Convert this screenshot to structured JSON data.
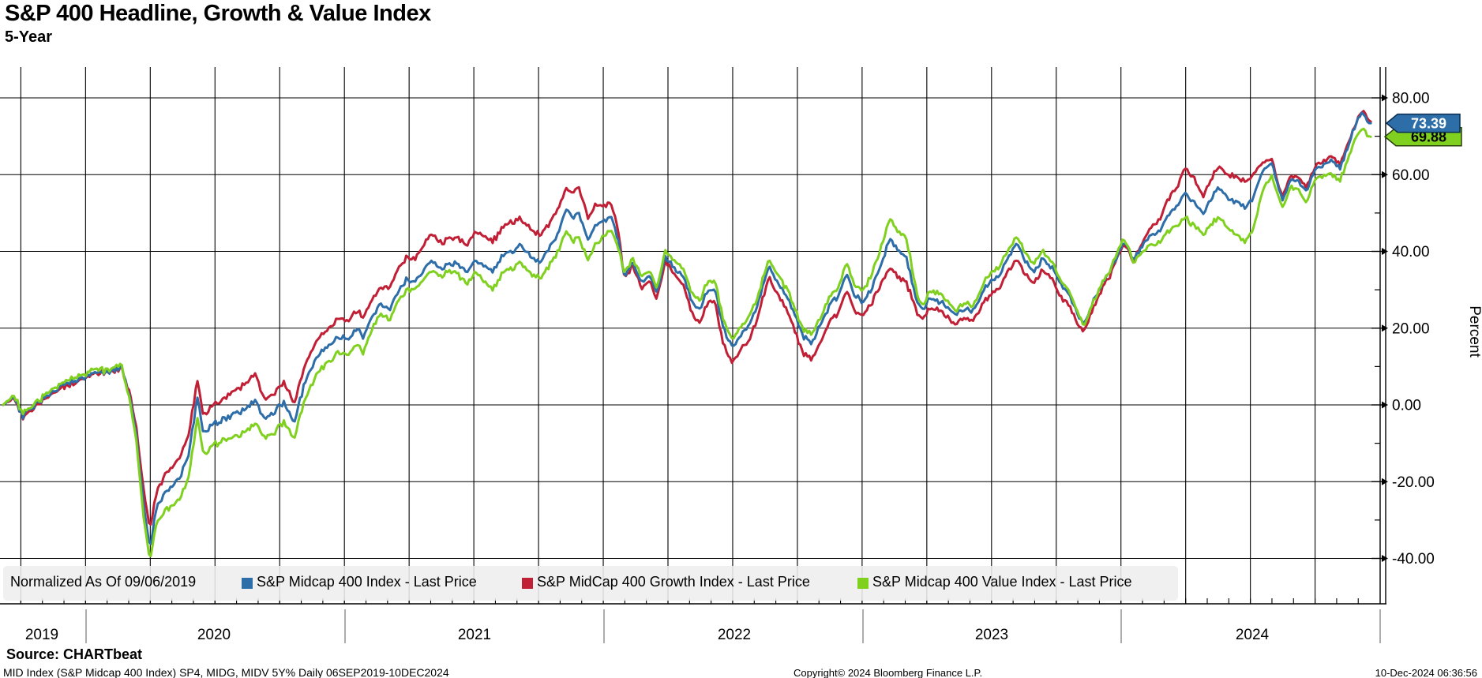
{
  "header": {
    "title": "S&P 400 Headline, Growth & Value Index",
    "subtitle": "5-Year"
  },
  "legend": {
    "normalized_label": "Normalized As Of 09/06/2019",
    "items": [
      {
        "label": "S&P Midcap 400 Index - Last Price",
        "color": "#2d6da8"
      },
      {
        "label": "S&P MidCap 400 Growth Index - Last Price",
        "color": "#c01f35"
      },
      {
        "label": "S&P Midcap 400 Value Index - Last Price",
        "color": "#80d020"
      }
    ]
  },
  "y_axis": {
    "title": "Percent",
    "major_ticks": [
      80,
      60,
      40,
      20,
      0,
      -20,
      -40
    ],
    "major_tick_labels": [
      "80.00",
      "60.00",
      "40.00",
      "20.00",
      "0.00",
      "-20.00",
      "-40.00"
    ],
    "minor_ticks": [
      70,
      50,
      30,
      10,
      -10,
      -30
    ]
  },
  "x_axis": {
    "year_labels": [
      "2019",
      "2020",
      "2021",
      "2022",
      "2023",
      "2024"
    ]
  },
  "price_tags": [
    {
      "label": "73.39",
      "value": 73.39,
      "bg": "#2d6da8",
      "text_color": "#ffffff",
      "border": "#0d2f52"
    },
    {
      "label": "69.88",
      "value": 69.88,
      "bg": "#80d020",
      "text_color": "#000000",
      "border": "#27400b"
    }
  ],
  "footer": {
    "source": "Source: CHARTbeat",
    "meta": "MID Index (S&P Midcap 400 Index) SP4, MIDG, MIDV 5Y%  Daily 06SEP2019-10DEC2024",
    "copyright": "Copyright© 2024 Bloomberg Finance L.P.",
    "timestamp": "10-Dec-2024 06:36:56"
  },
  "chart_data": {
    "type": "line",
    "title": "S&P 400 Headline, Growth & Value Index",
    "subtitle": "5-Year",
    "ylabel": "Percent",
    "ylim": [
      -52,
      88
    ],
    "yticks": [
      80,
      60,
      40,
      20,
      0,
      -20,
      -40
    ],
    "grid": "vertical quarterly lines, horizontal every 20 units",
    "legend_position": "bottom-inside",
    "normalized_as_of": "09/06/2019",
    "period": "06SEP2019-10DEC2024",
    "x_unit": "months since 2019-09-06",
    "x_years": {
      "2020": 3.84,
      "2021": 15.88,
      "2022": 27.92,
      "2023": 39.96,
      "2024": 52.0
    },
    "t": [
      0,
      0.5,
      0.9,
      1.3,
      1.8,
      2.3,
      2.9,
      3.4,
      3.9,
      4.4,
      4.7,
      5.1,
      5.5,
      5.9,
      6.2,
      6.5,
      6.8,
      7.1,
      7.4,
      7.8,
      8.2,
      8.6,
      9.0,
      9.3,
      9.7,
      10.2,
      10.7,
      11.2,
      11.7,
      12.1,
      12.6,
      13.0,
      13.5,
      14.0,
      14.5,
      15.0,
      15.5,
      16.0,
      16.4,
      16.7,
      17.1,
      17.5,
      17.9,
      18.3,
      18.7,
      19.1,
      19.5,
      19.9,
      20.3,
      20.7,
      21.1,
      21.5,
      21.9,
      22.3,
      22.7,
      23.1,
      23.6,
      24.0,
      24.5,
      24.9,
      25.3,
      25.7,
      26.1,
      26.4,
      26.7,
      27.1,
      27.5,
      27.9,
      28.2,
      28.5,
      28.8,
      29.2,
      29.6,
      30.0,
      30.3,
      30.7,
      31.1,
      31.5,
      31.9,
      32.3,
      32.7,
      33.0,
      33.4,
      33.8,
      34.2,
      34.6,
      35.0,
      35.5,
      35.9,
      36.3,
      36.7,
      37.1,
      37.5,
      37.9,
      38.3,
      38.7,
      39.1,
      39.5,
      39.9,
      40.3,
      40.7,
      41.1,
      41.5,
      41.9,
      42.3,
      42.6,
      43.0,
      43.4,
      43.8,
      44.2,
      44.6,
      45.0,
      45.4,
      45.8,
      46.2,
      46.6,
      47.0,
      47.4,
      47.8,
      48.2,
      48.6,
      49.0,
      49.4,
      49.8,
      50.1,
      50.5,
      50.9,
      51.3,
      51.7,
      52.0,
      52.4,
      52.8,
      53.2,
      53.6,
      54.0,
      54.4,
      54.8,
      55.2,
      55.6,
      56.0,
      56.4,
      56.8,
      57.2,
      57.6,
      58.0,
      58.4,
      58.8,
      59.1,
      59.3,
      59.7,
      60.1,
      60.4,
      60.8,
      61.2,
      61.6,
      62.0,
      62.4,
      62.7,
      63.0,
      63.2,
      63.4
    ],
    "series": [
      {
        "name": "S&P MidCap 400 Growth Index - Last Price",
        "color": "#c01f35",
        "values": [
          0,
          1.8,
          -3.2,
          -1.5,
          1.0,
          3.0,
          5.0,
          6.0,
          7.2,
          8.6,
          8.0,
          9.0,
          9.8,
          2.0,
          -7.0,
          -22.0,
          -32.0,
          -23.0,
          -19.5,
          -16.0,
          -13.5,
          -8.0,
          6.0,
          -3.0,
          0.0,
          1.5,
          3.5,
          5.5,
          8.5,
          1.5,
          3.5,
          6.0,
          0.5,
          10.5,
          16.5,
          19.5,
          22.5,
          22.0,
          25.0,
          22.5,
          27.0,
          31.0,
          30.5,
          35.0,
          38.5,
          38.0,
          42.0,
          44.5,
          42.0,
          43.5,
          43.5,
          41.5,
          45.5,
          44.0,
          42.5,
          46.0,
          47.5,
          48.5,
          45.5,
          44.5,
          47.0,
          50.5,
          56.5,
          55.0,
          56.5,
          49.0,
          52.0,
          52.0,
          52.5,
          45.5,
          33.0,
          36.5,
          30.0,
          32.0,
          28.0,
          37.5,
          34.5,
          31.5,
          24.5,
          21.0,
          27.5,
          26.5,
          15.5,
          11.0,
          14.5,
          17.5,
          23.0,
          33.5,
          28.5,
          25.0,
          19.5,
          13.0,
          12.0,
          16.0,
          21.5,
          24.0,
          29.5,
          24.5,
          23.5,
          27.0,
          31.5,
          36.0,
          33.0,
          31.5,
          25.0,
          22.0,
          25.5,
          24.5,
          22.5,
          21.0,
          23.0,
          22.0,
          26.5,
          29.0,
          30.5,
          35.0,
          37.5,
          34.0,
          31.5,
          35.0,
          33.0,
          28.5,
          26.0,
          21.0,
          19.0,
          25.0,
          30.0,
          33.5,
          39.5,
          42.0,
          37.5,
          42.5,
          46.0,
          48.5,
          53.0,
          56.5,
          61.5,
          59.0,
          54.0,
          59.0,
          62.0,
          59.5,
          59.5,
          58.0,
          60.5,
          63.5,
          64.0,
          58.0,
          54.0,
          59.5,
          59.0,
          56.5,
          62.0,
          63.5,
          64.5,
          63.0,
          69.0,
          73.5,
          76.5,
          75.0,
          73.8
        ]
      },
      {
        "name": "S&P Midcap 400 Index - Last Price",
        "color": "#2d6da8",
        "last": 73.39,
        "values": [
          0,
          2.2,
          -2.8,
          -1.0,
          1.5,
          3.5,
          5.5,
          6.5,
          7.5,
          9.0,
          8.0,
          9.3,
          10.0,
          1.0,
          -9.0,
          -26.0,
          -37.0,
          -27.0,
          -24.0,
          -21.0,
          -19.0,
          -13.0,
          1.5,
          -7.5,
          -5.0,
          -4.0,
          -2.5,
          -1.0,
          1.5,
          -3.5,
          -1.5,
          0.5,
          -4.5,
          6.0,
          12.0,
          15.0,
          17.5,
          17.0,
          20.5,
          17.5,
          22.5,
          26.5,
          25.0,
          29.0,
          32.5,
          32.0,
          35.5,
          37.5,
          35.5,
          37.0,
          36.5,
          34.5,
          38.0,
          36.5,
          34.5,
          38.5,
          40.0,
          41.5,
          38.5,
          37.5,
          40.5,
          44.0,
          51.5,
          48.5,
          50.0,
          43.5,
          47.0,
          48.5,
          49.0,
          43.0,
          33.5,
          37.0,
          31.5,
          33.5,
          29.5,
          38.5,
          36.0,
          33.5,
          27.5,
          24.5,
          30.5,
          29.5,
          20.0,
          15.0,
          18.5,
          21.5,
          26.5,
          36.5,
          31.5,
          28.5,
          23.5,
          17.5,
          16.5,
          20.5,
          26.0,
          28.5,
          33.5,
          28.5,
          27.0,
          31.0,
          36.5,
          43.5,
          40.0,
          38.0,
          28.0,
          24.5,
          28.0,
          27.0,
          25.0,
          23.5,
          25.5,
          24.5,
          29.5,
          32.5,
          34.0,
          38.5,
          42.0,
          37.5,
          34.5,
          38.0,
          36.0,
          31.5,
          29.0,
          23.5,
          21.0,
          26.5,
          31.5,
          34.5,
          40.0,
          42.5,
          38.0,
          41.5,
          44.0,
          45.5,
          49.0,
          51.5,
          55.0,
          53.0,
          49.5,
          54.0,
          56.5,
          53.5,
          53.0,
          51.5,
          54.5,
          61.5,
          63.0,
          57.0,
          53.0,
          58.5,
          58.0,
          55.5,
          61.0,
          62.5,
          63.5,
          62.0,
          68.5,
          73.0,
          76.0,
          74.0,
          73.39
        ]
      },
      {
        "name": "S&P Midcap 400 Value Index - Last Price",
        "color": "#80d020",
        "last": 69.88,
        "values": [
          0,
          2.6,
          -2.2,
          -0.5,
          2.0,
          4.0,
          6.2,
          7.2,
          8.3,
          9.8,
          8.6,
          9.9,
          10.4,
          0.0,
          -11.0,
          -29.0,
          -40.3,
          -31.0,
          -28.5,
          -26.0,
          -24.5,
          -19.0,
          -3.5,
          -13.0,
          -10.5,
          -9.5,
          -8.5,
          -7.0,
          -4.5,
          -8.5,
          -7.0,
          -4.5,
          -8.5,
          1.5,
          7.5,
          11.0,
          13.5,
          13.0,
          16.5,
          13.5,
          19.5,
          24.0,
          22.0,
          26.5,
          30.0,
          30.0,
          33.0,
          35.0,
          33.5,
          35.0,
          34.0,
          31.5,
          34.5,
          32.5,
          30.0,
          34.0,
          35.5,
          37.0,
          34.0,
          33.0,
          36.0,
          39.5,
          45.5,
          42.5,
          43.5,
          38.0,
          42.0,
          44.5,
          45.5,
          41.0,
          34.5,
          38.0,
          33.0,
          35.0,
          31.0,
          40.0,
          38.0,
          35.5,
          30.0,
          27.0,
          33.0,
          32.0,
          22.0,
          17.0,
          20.5,
          23.5,
          28.5,
          38.0,
          33.5,
          30.5,
          25.5,
          19.5,
          18.5,
          22.5,
          28.0,
          30.5,
          36.5,
          31.0,
          30.0,
          34.5,
          41.0,
          49.0,
          45.0,
          43.0,
          30.5,
          25.5,
          30.0,
          29.0,
          26.5,
          24.5,
          27.0,
          25.5,
          31.5,
          34.5,
          36.0,
          40.5,
          43.5,
          39.5,
          36.5,
          40.0,
          37.5,
          32.5,
          30.0,
          24.0,
          20.5,
          26.5,
          31.5,
          35.0,
          41.0,
          43.5,
          37.5,
          40.0,
          41.5,
          42.5,
          45.0,
          46.5,
          48.5,
          47.0,
          44.0,
          47.5,
          48.5,
          46.0,
          44.5,
          42.5,
          46.5,
          56.5,
          59.5,
          54.5,
          51.0,
          56.5,
          55.5,
          52.5,
          58.5,
          59.5,
          60.0,
          58.5,
          65.5,
          69.5,
          72.0,
          70.5,
          69.88
        ]
      }
    ]
  }
}
